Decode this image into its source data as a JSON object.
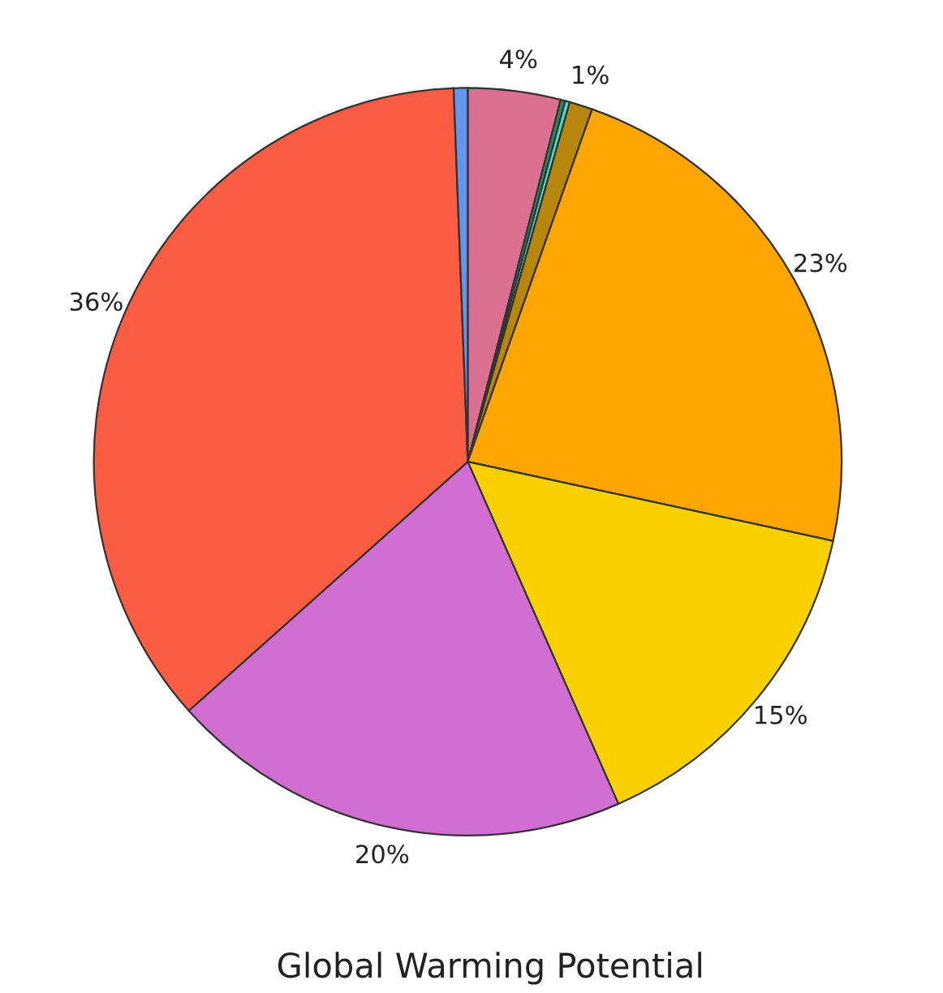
{
  "chart_data": {
    "type": "pie",
    "title": "Global Warming Potential",
    "categories": [
      null,
      null,
      null,
      null,
      null,
      null,
      null,
      null,
      null
    ],
    "values": [
      4,
      0.2,
      0.2,
      1,
      23,
      15,
      20,
      36,
      0.6
    ],
    "value_labels": [
      "4%",
      null,
      null,
      "1%",
      "23%",
      "15%",
      "20%",
      "36%",
      null
    ],
    "colors": [
      "#db7093",
      "#2e8b57",
      "#40e0d0",
      "#b8860b",
      "#ffa500",
      "#f9d000",
      "#d26ed2",
      "#fa5c42",
      "#6495ed"
    ],
    "legend": false
  }
}
